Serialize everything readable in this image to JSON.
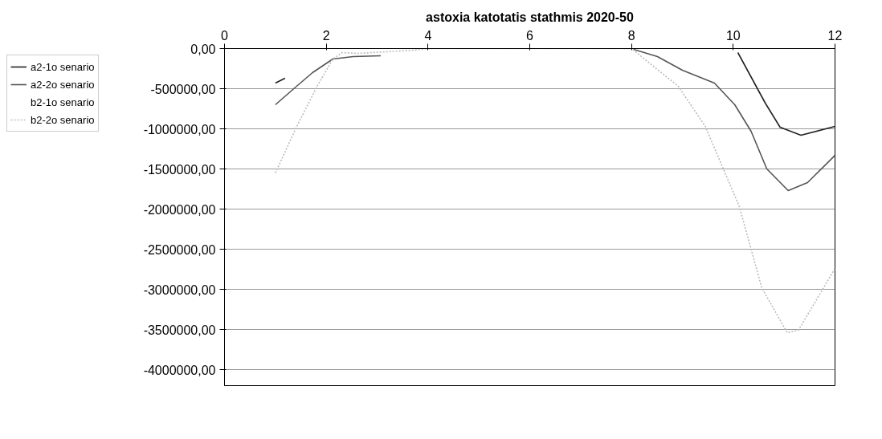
{
  "chart_data": {
    "type": "line",
    "title": "astoxia katotatis stathmis 2020-50",
    "xlim": [
      0,
      12
    ],
    "xticks": [
      0,
      2,
      4,
      6,
      8,
      10,
      12
    ],
    "ylim": [
      -4200000,
      0
    ],
    "yticks": [
      {
        "value": 0,
        "label": "0,00"
      },
      {
        "value": -500000,
        "label": "-500000,00"
      },
      {
        "value": -1000000,
        "label": "-1000000,00"
      },
      {
        "value": -1500000,
        "label": "-1500000,00"
      },
      {
        "value": -2000000,
        "label": "-2000000,00"
      },
      {
        "value": -2500000,
        "label": "-2500000,00"
      },
      {
        "value": -3000000,
        "label": "-3000000,00"
      },
      {
        "value": -3500000,
        "label": "-3500000,00"
      },
      {
        "value": -4000000,
        "label": "-4000000,00"
      }
    ],
    "grid": "y",
    "legend": "top left",
    "marker": "none",
    "series": [
      {
        "name": "a2-1o senario",
        "color": "#222222",
        "line_style": "solid",
        "x": [
          1.0,
          1.19,
          null,
          10.09,
          10.63,
          10.92,
          11.33,
          12
        ],
        "values": [
          -430000,
          -370000,
          null,
          -50000,
          -680000,
          -980000,
          -1080000,
          -970000
        ]
      },
      {
        "name": "a2-2o senario",
        "color": "#555555",
        "line_style": "solid",
        "x": [
          1.0,
          1.38,
          1.73,
          2.13,
          2.53,
          3.07,
          null,
          8.04,
          8.51,
          9.0,
          9.63,
          10.03,
          10.35,
          10.66,
          11.08,
          11.46,
          12
        ],
        "values": [
          -700000,
          -490000,
          -300000,
          -130000,
          -100000,
          -90000,
          null,
          -10000,
          -100000,
          -270000,
          -430000,
          -700000,
          -1030000,
          -1500000,
          -1770000,
          -1670000,
          -1330000
        ]
      },
      {
        "name": "b2-1o senario"
      },
      {
        "name": "b2-2o senario",
        "color": "#bbbbbb",
        "line_style": "dotted",
        "x": [
          1.0,
          1.42,
          1.82,
          2.13,
          2.31,
          2.62,
          3.73,
          4,
          6,
          8,
          8.92,
          9.45,
          10.12,
          10.56,
          11.06,
          11.28,
          12
        ],
        "values": [
          -1550000,
          -970000,
          -470000,
          -130000,
          -50000,
          -60000,
          -20000,
          0,
          0,
          0,
          -470000,
          -970000,
          -1970000,
          -2980000,
          -3540000,
          -3510000,
          -2740000
        ]
      }
    ]
  }
}
